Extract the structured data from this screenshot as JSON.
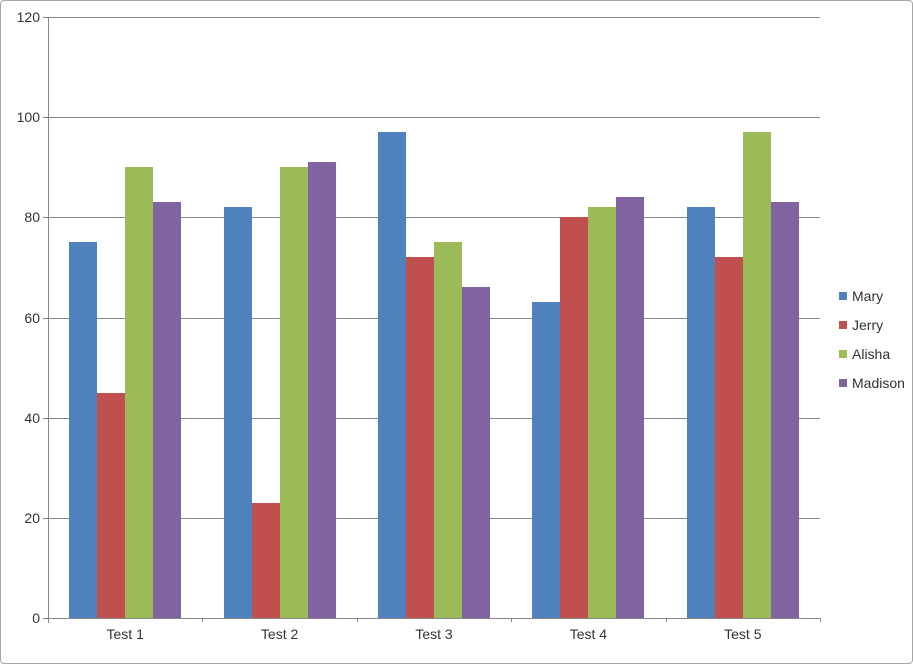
{
  "chart_data": {
    "type": "bar",
    "title": "",
    "xlabel": "",
    "ylabel": "",
    "categories": [
      "Test 1",
      "Test 2",
      "Test 3",
      "Test 4",
      "Test 5"
    ],
    "series": [
      {
        "name": "Mary",
        "color": "#4F81BD",
        "values": [
          75,
          82,
          97,
          63,
          82
        ]
      },
      {
        "name": "Jerry",
        "color": "#C0504D",
        "values": [
          45,
          23,
          72,
          80,
          72
        ]
      },
      {
        "name": "Alisha",
        "color": "#9BBB59",
        "values": [
          90,
          90,
          75,
          82,
          97
        ]
      },
      {
        "name": "Madison",
        "color": "#8064A2",
        "values": [
          83,
          91,
          66,
          84,
          83
        ]
      }
    ],
    "ylim": [
      0,
      120
    ],
    "y_ticks": [
      0,
      20,
      40,
      60,
      80,
      100,
      120
    ],
    "grid": true,
    "legend_position": "right"
  },
  "colors": {
    "background": "#FFFFFF",
    "gridline": "#878787",
    "axis_line": "#878787",
    "axis_text": "#333333",
    "frame_border": "#A6A6A6"
  }
}
